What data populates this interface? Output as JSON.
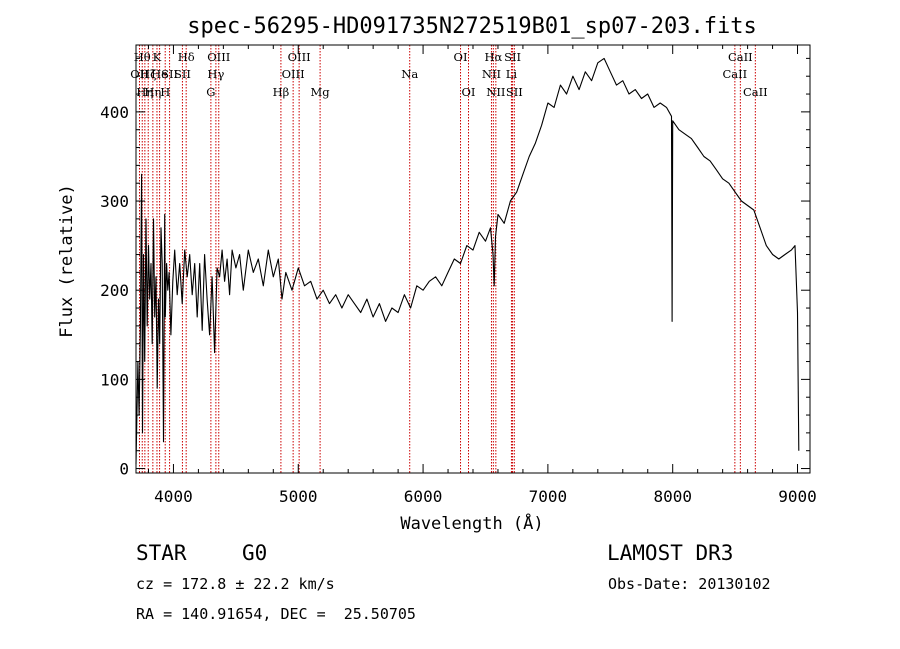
{
  "chart_data": {
    "type": "line",
    "title": "spec-56295-HD091735N272519B01_sp07-203.fits",
    "xlabel": "Wavelength (Å)",
    "ylabel": "Flux (relative)",
    "xlim": [
      3700,
      9100
    ],
    "ylim": [
      -5,
      475
    ],
    "xticks": [
      4000,
      5000,
      6000,
      7000,
      8000,
      9000
    ],
    "yticks": [
      0,
      100,
      200,
      300,
      400
    ],
    "series": [
      {
        "name": "flux",
        "color": "#000000",
        "points": [
          [
            3700,
            5
          ],
          [
            3715,
            120
          ],
          [
            3725,
            60
          ],
          [
            3735,
            160
          ],
          [
            3745,
            330
          ],
          [
            3752,
            40
          ],
          [
            3760,
            240
          ],
          [
            3770,
            120
          ],
          [
            3780,
            280
          ],
          [
            3790,
            160
          ],
          [
            3800,
            250
          ],
          [
            3810,
            190
          ],
          [
            3820,
            230
          ],
          [
            3830,
            140
          ],
          [
            3840,
            280
          ],
          [
            3850,
            170
          ],
          [
            3860,
            215
          ],
          [
            3870,
            90
          ],
          [
            3880,
            190
          ],
          [
            3890,
            140
          ],
          [
            3900,
            270
          ],
          [
            3910,
            230
          ],
          [
            3920,
            30
          ],
          [
            3930,
            285
          ],
          [
            3935,
            170
          ],
          [
            3945,
            230
          ],
          [
            3955,
            200
          ],
          [
            3965,
            220
          ],
          [
            3980,
            150
          ],
          [
            3995,
            210
          ],
          [
            4010,
            245
          ],
          [
            4030,
            195
          ],
          [
            4050,
            230
          ],
          [
            4070,
            185
          ],
          [
            4090,
            245
          ],
          [
            4110,
            215
          ],
          [
            4130,
            240
          ],
          [
            4150,
            195
          ],
          [
            4170,
            230
          ],
          [
            4190,
            170
          ],
          [
            4210,
            230
          ],
          [
            4230,
            155
          ],
          [
            4250,
            240
          ],
          [
            4270,
            190
          ],
          [
            4290,
            150
          ],
          [
            4310,
            215
          ],
          [
            4330,
            130
          ],
          [
            4350,
            225
          ],
          [
            4370,
            215
          ],
          [
            4390,
            245
          ],
          [
            4410,
            210
          ],
          [
            4430,
            235
          ],
          [
            4450,
            195
          ],
          [
            4470,
            245
          ],
          [
            4500,
            225
          ],
          [
            4530,
            240
          ],
          [
            4560,
            200
          ],
          [
            4600,
            245
          ],
          [
            4640,
            220
          ],
          [
            4680,
            235
          ],
          [
            4720,
            205
          ],
          [
            4760,
            245
          ],
          [
            4800,
            215
          ],
          [
            4840,
            235
          ],
          [
            4870,
            190
          ],
          [
            4900,
            220
          ],
          [
            4950,
            200
          ],
          [
            5000,
            225
          ],
          [
            5050,
            205
          ],
          [
            5100,
            210
          ],
          [
            5150,
            190
          ],
          [
            5200,
            200
          ],
          [
            5250,
            185
          ],
          [
            5300,
            195
          ],
          [
            5350,
            180
          ],
          [
            5400,
            195
          ],
          [
            5450,
            185
          ],
          [
            5500,
            175
          ],
          [
            5550,
            190
          ],
          [
            5600,
            170
          ],
          [
            5650,
            185
          ],
          [
            5700,
            165
          ],
          [
            5750,
            180
          ],
          [
            5800,
            175
          ],
          [
            5850,
            195
          ],
          [
            5900,
            180
          ],
          [
            5950,
            205
          ],
          [
            6000,
            200
          ],
          [
            6050,
            210
          ],
          [
            6100,
            215
          ],
          [
            6150,
            205
          ],
          [
            6200,
            220
          ],
          [
            6250,
            235
          ],
          [
            6300,
            230
          ],
          [
            6350,
            250
          ],
          [
            6400,
            245
          ],
          [
            6450,
            265
          ],
          [
            6500,
            255
          ],
          [
            6540,
            270
          ],
          [
            6560,
            240
          ],
          [
            6570,
            205
          ],
          [
            6580,
            260
          ],
          [
            6600,
            285
          ],
          [
            6650,
            275
          ],
          [
            6700,
            300
          ],
          [
            6750,
            310
          ],
          [
            6800,
            330
          ],
          [
            6850,
            350
          ],
          [
            6900,
            365
          ],
          [
            6950,
            385
          ],
          [
            7000,
            410
          ],
          [
            7050,
            405
          ],
          [
            7100,
            430
          ],
          [
            7150,
            420
          ],
          [
            7200,
            440
          ],
          [
            7250,
            425
          ],
          [
            7300,
            445
          ],
          [
            7350,
            435
          ],
          [
            7400,
            455
          ],
          [
            7450,
            460
          ],
          [
            7500,
            445
          ],
          [
            7550,
            430
          ],
          [
            7600,
            435
          ],
          [
            7650,
            420
          ],
          [
            7700,
            425
          ],
          [
            7750,
            415
          ],
          [
            7800,
            420
          ],
          [
            7850,
            405
          ],
          [
            7900,
            410
          ],
          [
            7950,
            405
          ],
          [
            7990,
            395
          ],
          [
            7995,
            165
          ],
          [
            8000,
            390
          ],
          [
            8050,
            380
          ],
          [
            8100,
            375
          ],
          [
            8150,
            370
          ],
          [
            8200,
            360
          ],
          [
            8250,
            350
          ],
          [
            8300,
            345
          ],
          [
            8350,
            335
          ],
          [
            8400,
            325
          ],
          [
            8450,
            320
          ],
          [
            8500,
            310
          ],
          [
            8550,
            300
          ],
          [
            8600,
            295
          ],
          [
            8650,
            290
          ],
          [
            8700,
            270
          ],
          [
            8750,
            250
          ],
          [
            8800,
            240
          ],
          [
            8850,
            235
          ],
          [
            8900,
            240
          ],
          [
            8950,
            245
          ],
          [
            8980,
            250
          ],
          [
            9000,
            175
          ],
          [
            9010,
            20
          ]
        ]
      }
    ],
    "lines": [
      {
        "x": 3728,
        "label": "OII",
        "row": 1
      },
      {
        "x": 3750,
        "label": "Hθ",
        "row": 0
      },
      {
        "x": 3771,
        "label": "Hη",
        "row": 2
      },
      {
        "x": 3798,
        "label": "Hζ",
        "row": 1
      },
      {
        "x": 3835,
        "label": "Hη",
        "row": 2
      },
      {
        "x": 3868,
        "label": "K",
        "row": 0
      },
      {
        "x": 3889,
        "label": "He",
        "row": 1
      },
      {
        "x": 3934,
        "label": "H",
        "row": 2
      },
      {
        "x": 3969,
        "label": "SII",
        "row": 1
      },
      {
        "x": 4072,
        "label": "SII",
        "row": 1
      },
      {
        "x": 4102,
        "label": "Hδ",
        "row": 0
      },
      {
        "x": 4300,
        "label": "G",
        "row": 2
      },
      {
        "x": 4340,
        "label": "Hγ",
        "row": 1
      },
      {
        "x": 4363,
        "label": "OIII",
        "row": 0
      },
      {
        "x": 4861,
        "label": "Hβ",
        "row": 2
      },
      {
        "x": 4959,
        "label": "OIII",
        "row": 1
      },
      {
        "x": 5007,
        "label": "OIII",
        "row": 0
      },
      {
        "x": 5175,
        "label": "Mg",
        "row": 2
      },
      {
        "x": 5893,
        "label": "Na",
        "row": 1
      },
      {
        "x": 6300,
        "label": "OI",
        "row": 0
      },
      {
        "x": 6364,
        "label": "OI",
        "row": 2
      },
      {
        "x": 6548,
        "label": "NII",
        "row": 1
      },
      {
        "x": 6563,
        "label": "Hα",
        "row": 0
      },
      {
        "x": 6583,
        "label": "NII",
        "row": 2
      },
      {
        "x": 6708,
        "label": "Li",
        "row": 1
      },
      {
        "x": 6717,
        "label": "SII",
        "row": 0
      },
      {
        "x": 6731,
        "label": "SII",
        "row": 2
      },
      {
        "x": 8498,
        "label": "CaII",
        "row": 1
      },
      {
        "x": 8542,
        "label": "CaII",
        "row": 0
      },
      {
        "x": 8662,
        "label": "CaII",
        "row": 2
      }
    ]
  },
  "info": {
    "object_class": "STAR",
    "subclass": "G0",
    "survey": "LAMOST DR3",
    "redshift": "cz = 172.8 ± 22.2 km/s",
    "obs_date": "Obs-Date: 20130102",
    "coords": "RA = 140.91654, DEC =  25.50705"
  },
  "colors": {
    "line_marker": "#cc0000",
    "spectrum": "#000000",
    "axes": "#000000"
  }
}
